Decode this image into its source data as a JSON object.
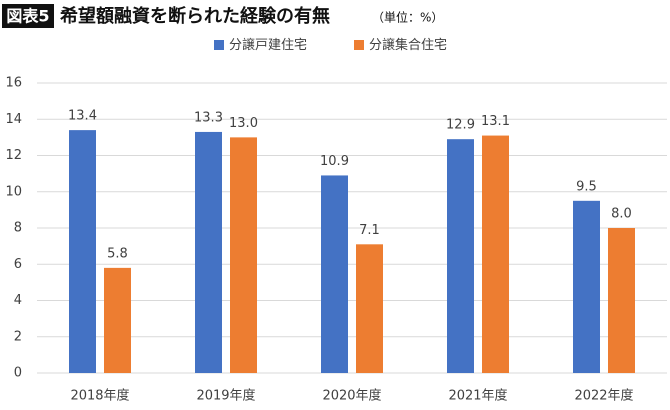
{
  "chart_data": {
    "type": "bar",
    "figure_label": "図表5",
    "title": "希望額融資を断られた経験の有無",
    "unit_note": "（単位：%）",
    "categories": [
      "2018年度",
      "2019年度",
      "2020年度",
      "2021年度",
      "2022年度"
    ],
    "series": [
      {
        "name": "分譲戸建住宅",
        "color": "#4472c4",
        "values": [
          13.4,
          13.3,
          10.9,
          12.9,
          9.5
        ],
        "value_labels": [
          "13.4",
          "13.3",
          "10.9",
          "12.9",
          "9.5"
        ]
      },
      {
        "name": "分譲集合住宅",
        "color": "#ed7d31",
        "values": [
          5.8,
          13.0,
          7.1,
          13.1,
          8.0
        ],
        "value_labels": [
          "5.8",
          "13.0",
          "7.1",
          "13.1",
          "8.0"
        ]
      }
    ],
    "ylim": [
      0,
      16
    ],
    "yticks": [
      0,
      2,
      4,
      6,
      8,
      10,
      12,
      14,
      16
    ],
    "grid": true
  }
}
